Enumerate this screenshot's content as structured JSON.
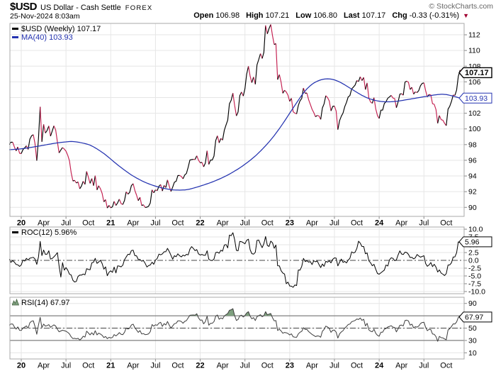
{
  "header": {
    "symbol": "$USD",
    "name": "US Dollar - Cash Settle",
    "exchange": "FOREX",
    "copyright": "© StockCharts.com",
    "datetime": "25-Nov-2024 8:03am",
    "quote_items": [
      {
        "label": "Open",
        "value": "106.98"
      },
      {
        "label": "High",
        "value": "107.21"
      },
      {
        "label": "Low",
        "value": "106.80"
      },
      {
        "label": "Last",
        "value": "107.17"
      },
      {
        "label": "Chg",
        "value": "-0.33 (-0.31%)"
      }
    ],
    "direction": "▼"
  },
  "legends": {
    "price": "$USD (Weekly) 107.17",
    "ma": "MA(40) 103.93",
    "roc": "ROC(12) 5.96%",
    "rsi": "RSI(14) 67.97"
  },
  "colors": {
    "price_up": "#000000",
    "price_down": "#c41e4f",
    "ma": "#2433b0",
    "roc_line": "#000000",
    "rsi_line": "#3c3c3c",
    "rsi_fill": "#7fa07f",
    "grid": "#e6e6e6",
    "panel_border": "#a8a8a8",
    "band_line": "#666666",
    "dashdot": "#444444",
    "down_triangle": "#a00030"
  },
  "x_axis": {
    "labels": [
      {
        "label": "20",
        "year": true
      },
      {
        "label": "Apr"
      },
      {
        "label": "Jul"
      },
      {
        "label": "Oct"
      },
      {
        "label": "21",
        "year": true
      },
      {
        "label": "Apr"
      },
      {
        "label": "Jul"
      },
      {
        "label": "Oct"
      },
      {
        "label": "22",
        "year": true
      },
      {
        "label": "Apr"
      },
      {
        "label": "Jul"
      },
      {
        "label": "Oct"
      },
      {
        "label": "23",
        "year": true
      },
      {
        "label": "Apr"
      },
      {
        "label": "Jul"
      },
      {
        "label": "Oct"
      },
      {
        "label": "24",
        "year": true
      },
      {
        "label": "Apr"
      },
      {
        "label": "Jul"
      },
      {
        "label": "Oct"
      }
    ],
    "gridline_every": "6 months"
  },
  "chart_data": [
    {
      "panel": "price",
      "type": "line",
      "timeframe": "weekly",
      "legend": "$USD (Weekly)",
      "legend_value": "107.17",
      "overlay_legend": "MA(40)",
      "overlay_value": "103.93",
      "y_ticks": [
        90,
        92,
        94,
        96,
        98,
        100,
        102,
        104,
        106,
        108,
        110,
        112
      ],
      "y_range": [
        88.85,
        113.45
      ],
      "first_point_weeks_before_jan2020": 7,
      "price_weekly": [
        98.0,
        98.3,
        98.3,
        97.7,
        97.2,
        97.7,
        96.9,
        96.85,
        97.36,
        97.6,
        97.85,
        97.39,
        98.68,
        99.12,
        99.26,
        98.13,
        95.95,
        98.75,
        102.82,
        98.36,
        100.58,
        99.48,
        99.78,
        100.38,
        99.08,
        99.73,
        100.4,
        99.86,
        98.34,
        96.94,
        97.32,
        97.62,
        97.43,
        97.17,
        96.65,
        95.94,
        94.44,
        93.35,
        93.44,
        93.1,
        93.25,
        92.37,
        92.72,
        93.33,
        92.93,
        94.58,
        93.84,
        93.06,
        93.68,
        92.77,
        94.04,
        92.22,
        92.76,
        92.39,
        91.79,
        90.7,
        90.98,
        89.92,
        90.25,
        89.94,
        90.07,
        90.77,
        90.24,
        90.58,
        91.04,
        90.48,
        90.36,
        90.88,
        91.98,
        91.68,
        91.92,
        92.77,
        93.02,
        92.16,
        91.56,
        90.86,
        91.28,
        90.23,
        90.32,
        89.99,
        90.03,
        90.14,
        90.56,
        92.23,
        91.85,
        92.23,
        92.13,
        92.69,
        92.91,
        92.09,
        92.8,
        92.52,
        93.5,
        92.69,
        92.03,
        92.58,
        93.2,
        93.33,
        94.05,
        94.07,
        93.94,
        93.64,
        94.12,
        94.32,
        95.13,
        96.03,
        96.09,
        96.12,
        96.1,
        96.57,
        96.02,
        95.67,
        95.74,
        95.17,
        95.64,
        97.22,
        95.48,
        96.03,
        96.04,
        96.54,
        98.5,
        99.12,
        98.23,
        98.79,
        98.57,
        99.84,
        100.5,
        101.12,
        103.21,
        103.66,
        104.56,
        103.03,
        101.67,
        102.16,
        104.23,
        104.7,
        104.19,
        105.14,
        106.97,
        107.99,
        106.73,
        105.9,
        106.62,
        105.69,
        108.17,
        108.84,
        109.61,
        108.97,
        109.76,
        113.19,
        112.12,
        112.8,
        113.31,
        111.88,
        110.75,
        110.88,
        106.29,
        106.93,
        105.96,
        104.55,
        104.93,
        104.7,
        104.31,
        103.52,
        103.91,
        102.2,
        102.01,
        101.92,
        102.99,
        103.58,
        103.88,
        105.21,
        104.53,
        104.58,
        103.71,
        103.12,
        102.51,
        102.09,
        101.55,
        101.72,
        101.66,
        101.21,
        102.68,
        103.2,
        104.23,
        103.99,
        103.56,
        102.3,
        102.87,
        102.91,
        102.27,
        99.91,
        101.07,
        101.62,
        102.02,
        102.85,
        103.38,
        104.08,
        104.24,
        105.09,
        105.33,
        105.58,
        106.17,
        106.04,
        106.65,
        106.16,
        106.56,
        105.02,
        105.86,
        103.92,
        103.43,
        103.27,
        103.98,
        102.55,
        101.7,
        101.33,
        102.4,
        102.4,
        103.24,
        103.47,
        103.92,
        104.08,
        104.28,
        103.94,
        103.86,
        102.71,
        103.43,
        104.43,
        104.49,
        104.3,
        105.97,
        106.09,
        105.94,
        105.03,
        105.31,
        104.44,
        104.72,
        104.63,
        104.89,
        105.51,
        105.8,
        105.87,
        104.88,
        104.09,
        104.4,
        104.32,
        103.21,
        103.14,
        102.46,
        100.72,
        101.7,
        101.18,
        101.11,
        100.72,
        100.42,
        102.52,
        102.89,
        103.49,
        104.32,
        104.28,
        104.95,
        106.69,
        107.5,
        107.17
      ],
      "ma40_anchors": [
        [
          -7,
          97.35
        ],
        [
          0,
          97.45
        ],
        [
          10,
          97.8
        ],
        [
          20,
          98.2
        ],
        [
          30,
          98.45
        ],
        [
          40,
          98.0
        ],
        [
          48,
          96.9
        ],
        [
          56,
          95.4
        ],
        [
          64,
          94.1
        ],
        [
          72,
          93.15
        ],
        [
          80,
          92.55
        ],
        [
          88,
          92.2
        ],
        [
          96,
          92.2
        ],
        [
          104,
          92.7
        ],
        [
          112,
          93.3
        ],
        [
          120,
          94.1
        ],
        [
          128,
          95.15
        ],
        [
          136,
          96.5
        ],
        [
          144,
          98.3
        ],
        [
          150,
          100.0
        ],
        [
          156,
          102.0
        ],
        [
          162,
          104.0
        ],
        [
          166,
          105.2
        ],
        [
          170,
          105.9
        ],
        [
          174,
          106.3
        ],
        [
          178,
          106.45
        ],
        [
          182,
          106.3
        ],
        [
          186,
          105.9
        ],
        [
          190,
          105.35
        ],
        [
          194,
          104.8
        ],
        [
          198,
          104.25
        ],
        [
          202,
          103.85
        ],
        [
          206,
          103.6
        ],
        [
          210,
          103.45
        ],
        [
          214,
          103.45
        ],
        [
          218,
          103.5
        ],
        [
          222,
          103.65
        ],
        [
          226,
          103.8
        ],
        [
          230,
          103.95
        ],
        [
          234,
          104.1
        ],
        [
          238,
          104.25
        ],
        [
          242,
          104.4
        ],
        [
          246,
          104.45
        ],
        [
          250,
          104.25
        ],
        [
          253,
          104.05
        ],
        [
          255,
          103.93
        ]
      ],
      "value_box": "107.17",
      "overlay_value_box": "103.93"
    },
    {
      "panel": "roc",
      "type": "line",
      "legend": "ROC(12)",
      "legend_value": "5.96%",
      "derived": "rate of change over 12 weeks of price series",
      "seed_prior_weeks": [
        97.2,
        98.1,
        97.5,
        98.2,
        97.64,
        98.92,
        98.39,
        98.26,
        98.51,
        99.11,
        98.81,
        98.3,
        97.28,
        97.83,
        97.24,
        97.3
      ],
      "y_ticks": [
        {
          "v": 10,
          "label": "10.0"
        },
        {
          "v": 7.5,
          "label": "7.5"
        },
        {
          "v": 5,
          "label": "5.0"
        },
        {
          "v": 2.5,
          "label": "2.5"
        },
        {
          "v": 0,
          "label": "0.0"
        },
        {
          "v": -2.5,
          "label": "-2.5"
        },
        {
          "v": -5,
          "label": "-5.0"
        },
        {
          "v": -7.5,
          "label": "-7.5"
        },
        {
          "v": -10,
          "label": "-10.0"
        }
      ],
      "y_range": [
        -10.7,
        10.7
      ],
      "zero_line_style": "dash-dot",
      "value_box": "5.96"
    },
    {
      "panel": "rsi",
      "type": "line",
      "legend": "RSI(14)",
      "legend_value": "67.97",
      "derived": "Wilder RSI over 14 weeks of price series",
      "y_ticks": [
        {
          "v": 90,
          "label": "90"
        },
        {
          "v": 50,
          "label": "50"
        },
        {
          "v": 30,
          "label": "30"
        },
        {
          "v": 10,
          "label": "10"
        }
      ],
      "y_range": [
        0,
        100
      ],
      "overbought_line": 70,
      "oversold_line": 30,
      "mid_line_dashdot": 50,
      "fill_above_70": true,
      "value_box": "67.97"
    }
  ]
}
